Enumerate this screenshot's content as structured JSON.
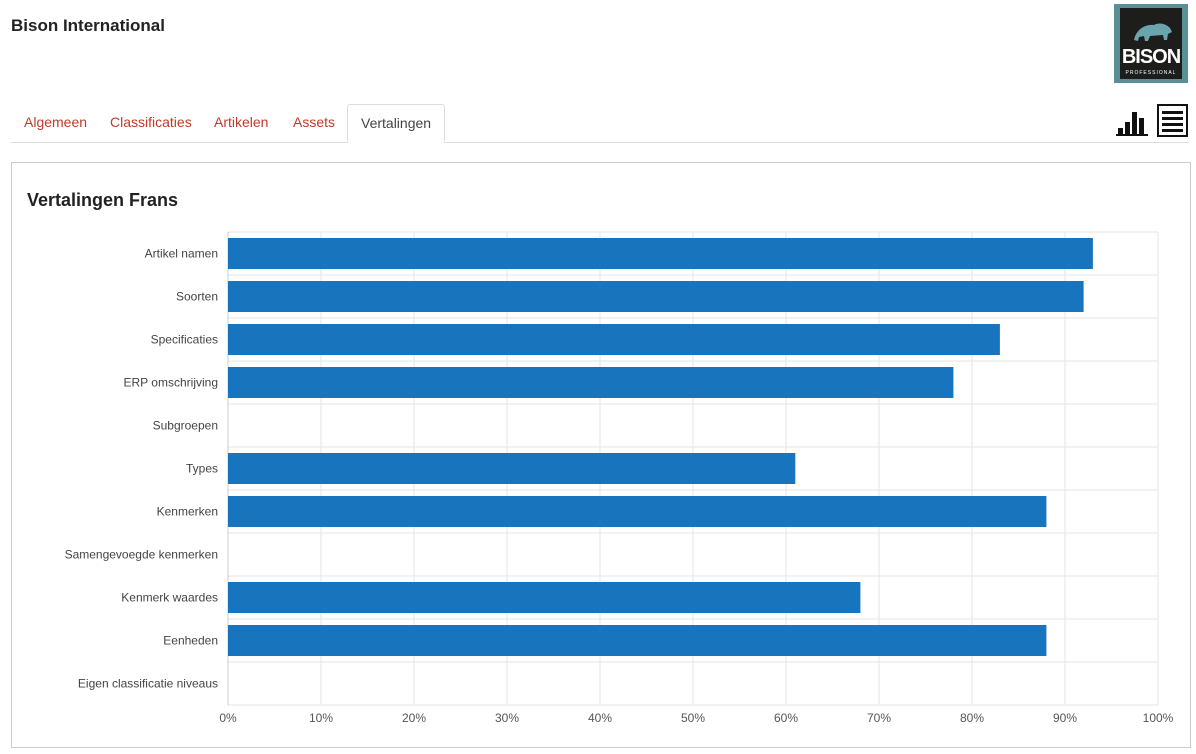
{
  "header": {
    "title": "Bison International",
    "logo": {
      "text": "BISON",
      "subtext": "PROFESSIONAL",
      "background": "#5b8f96"
    }
  },
  "tabs": [
    {
      "label": "Algemeen",
      "active": false
    },
    {
      "label": "Classificaties",
      "active": false
    },
    {
      "label": "Artikelen",
      "active": false
    },
    {
      "label": "Assets",
      "active": false
    },
    {
      "label": "Vertalingen",
      "active": true
    }
  ],
  "view_toggle": {
    "icons": [
      "bar-chart-icon",
      "list-icon"
    ]
  },
  "colors": {
    "tab_link": "#c0392b",
    "bar": "#1874bc",
    "grid": "#e5e5e5"
  },
  "chart_data": {
    "type": "bar",
    "orientation": "horizontal",
    "title": "Vertalingen Frans",
    "categories": [
      "Artikel namen",
      "Soorten",
      "Specificaties",
      "ERP omschrijving",
      "Subgroepen",
      "Types",
      "Kenmerken",
      "Samengevoegde kenmerken",
      "Kenmerk waardes",
      "Eenheden",
      "Eigen classificatie niveaus"
    ],
    "values": [
      93,
      92,
      83,
      78,
      0,
      61,
      88,
      0,
      68,
      88,
      0
    ],
    "xlim": [
      0,
      100
    ],
    "x_ticks": [
      "0%",
      "10%",
      "20%",
      "30%",
      "40%",
      "50%",
      "60%",
      "70%",
      "80%",
      "90%",
      "100%"
    ],
    "grid": true
  }
}
